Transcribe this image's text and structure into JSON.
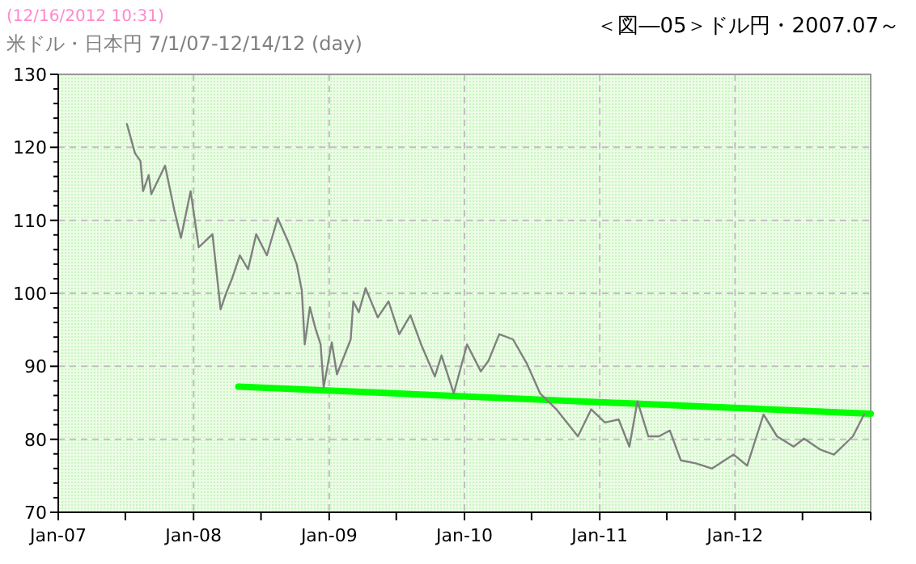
{
  "chart_data": {
    "type": "line",
    "title": "＜図―05＞ドル円・2007.07～",
    "subtitle": "米ドル・日本円 7/1/07-12/14/12 (day)",
    "annotations": [
      "(12/16/2012 10:31)"
    ],
    "xlim": [
      "2007-01-01",
      "2013-01-01"
    ],
    "xticks": [
      {
        "value": "2007-01-01",
        "label": "Jan-07"
      },
      {
        "value": "2007-07-01",
        "label": null
      },
      {
        "value": "2008-01-01",
        "label": "Jan-08"
      },
      {
        "value": "2008-07-01",
        "label": null
      },
      {
        "value": "2009-01-01",
        "label": "Jan-09"
      },
      {
        "value": "2009-07-01",
        "label": null
      },
      {
        "value": "2010-01-01",
        "label": "Jan-10"
      },
      {
        "value": "2010-07-01",
        "label": null
      },
      {
        "value": "2011-01-01",
        "label": "Jan-11"
      },
      {
        "value": "2011-07-01",
        "label": null
      },
      {
        "value": "2012-01-01",
        "label": "Jan-12"
      },
      {
        "value": "2012-07-01",
        "label": null
      },
      {
        "value": "2013-01-01",
        "label": null
      }
    ],
    "ylim": [
      70,
      130
    ],
    "yticks": [
      70,
      {
        "value": 72,
        "label": null
      },
      {
        "value": 74,
        "label": null
      },
      {
        "value": 76,
        "label": null
      },
      {
        "value": 78,
        "label": null
      },
      80,
      {
        "value": 82,
        "label": null
      },
      {
        "value": 84,
        "label": null
      },
      {
        "value": 86,
        "label": null
      },
      {
        "value": 88,
        "label": null
      },
      90,
      {
        "value": 92,
        "label": null
      },
      {
        "value": 94,
        "label": null
      },
      {
        "value": 96,
        "label": null
      },
      {
        "value": 98,
        "label": null
      },
      100,
      {
        "value": 102,
        "label": null
      },
      {
        "value": 104,
        "label": null
      },
      {
        "value": 106,
        "label": null
      },
      {
        "value": 108,
        "label": null
      },
      110,
      {
        "value": 112,
        "label": null
      },
      {
        "value": 114,
        "label": null
      },
      {
        "value": 116,
        "label": null
      },
      {
        "value": 118,
        "label": null
      },
      120,
      {
        "value": 122,
        "label": null
      },
      {
        "value": 124,
        "label": null
      },
      {
        "value": 126,
        "label": null
      },
      {
        "value": 128,
        "label": null
      },
      130
    ],
    "grid": true,
    "series": [
      {
        "color": "#808080",
        "x": [
          "2007-07-05",
          "2007-07-27",
          "2007-08-11",
          "2007-08-18",
          "2007-09-02",
          "2007-09-09",
          "2007-10-16",
          "2007-11-10",
          "2007-11-28",
          "2007-12-24",
          "2008-01-15",
          "2008-02-21",
          "2008-03-14",
          "2008-03-29",
          "2008-04-13",
          "2008-05-05",
          "2008-05-27",
          "2008-06-18",
          "2008-07-17",
          "2008-08-15",
          "2008-09-13",
          "2008-10-05",
          "2008-10-19",
          "2008-10-27",
          "2008-11-10",
          "2008-11-25",
          "2008-12-09",
          "2008-12-17",
          "2009-01-08",
          "2009-01-22",
          "2009-02-28",
          "2009-03-07",
          "2009-03-22",
          "2009-04-09",
          "2009-05-12",
          "2009-06-10",
          "2009-07-09",
          "2009-08-08",
          "2009-09-06",
          "2009-10-13",
          "2009-10-31",
          "2009-12-03",
          "2010-01-08",
          "2010-02-14",
          "2010-03-07",
          "2010-04-05",
          "2010-05-12",
          "2010-06-18",
          "2010-07-24",
          "2010-09-06",
          "2010-11-03",
          "2010-12-09",
          "2011-01-15",
          "2011-02-21",
          "2011-03-22",
          "2011-04-13",
          "2011-05-12",
          "2011-06-10",
          "2011-07-09",
          "2011-08-08",
          "2011-09-17",
          "2011-10-31",
          "2011-12-28",
          "2012-02-03",
          "2012-03-18",
          "2012-04-23",
          "2012-06-07",
          "2012-07-05",
          "2012-08-18",
          "2012-09-24",
          "2012-11-14",
          "2012-12-14"
        ],
        "values": [
          123.2,
          119.2,
          118.1,
          114.0,
          116.2,
          113.6,
          117.5,
          111.4,
          107.6,
          114.0,
          106.3,
          108.1,
          97.8,
          100.0,
          101.9,
          105.2,
          103.3,
          108.1,
          105.2,
          110.3,
          107.0,
          104.0,
          100.4,
          93.0,
          98.1,
          95.2,
          93.0,
          87.1,
          93.3,
          88.9,
          93.7,
          98.9,
          97.4,
          100.7,
          96.7,
          98.9,
          94.4,
          97.0,
          93.0,
          88.6,
          91.5,
          86.3,
          93.0,
          89.3,
          90.8,
          94.4,
          93.7,
          90.4,
          86.3,
          84.1,
          80.4,
          84.1,
          82.3,
          82.7,
          79.0,
          85.2,
          80.4,
          80.4,
          81.2,
          77.1,
          76.7,
          76.0,
          77.9,
          76.4,
          83.4,
          80.4,
          79.0,
          80.1,
          78.6,
          77.9,
          80.4,
          83.4
        ]
      },
      {
        "color": "#00ff00",
        "x": [
          "2008-05-01",
          "2013-01-01"
        ],
        "values": [
          87.2,
          83.5
        ]
      }
    ]
  }
}
